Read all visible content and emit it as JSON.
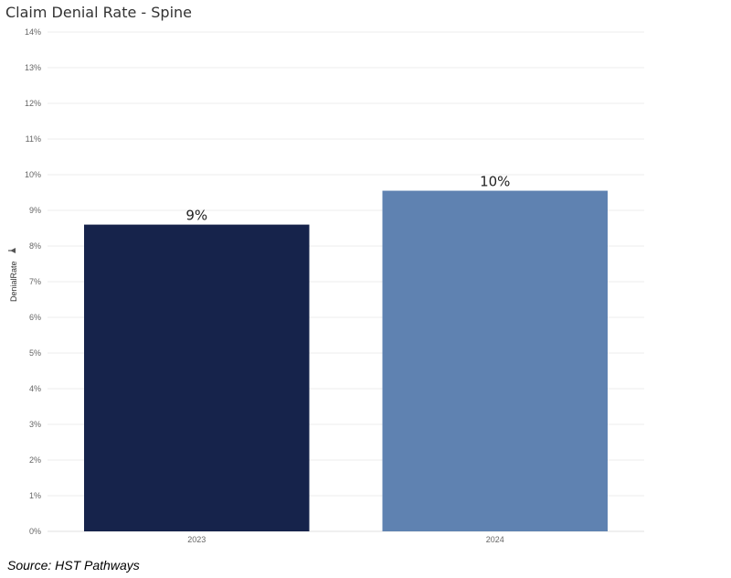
{
  "chart_data": {
    "type": "bar",
    "title": "Claim Denial Rate - Spine",
    "ylabel": "DenialRate",
    "xlabel": "",
    "categories": [
      "2023",
      "2024"
    ],
    "values": [
      0.086,
      0.0955
    ],
    "data_labels": [
      "9%",
      "10%"
    ],
    "colors": [
      "#16234b",
      "#5f82b1"
    ],
    "ylim": [
      0,
      0.14
    ],
    "yticks": [
      0,
      0.01,
      0.02,
      0.03,
      0.04,
      0.05,
      0.06,
      0.07,
      0.08,
      0.09,
      0.1,
      0.11,
      0.12,
      0.13,
      0.14
    ],
    "ytick_labels": [
      "0%",
      "1%",
      "2%",
      "3%",
      "4%",
      "5%",
      "6%",
      "7%",
      "8%",
      "9%",
      "10%",
      "11%",
      "12%",
      "13%",
      "14%"
    ],
    "grid": true,
    "sort_icon": "sort-descending-icon"
  },
  "source_note": "Source: HST Pathways"
}
